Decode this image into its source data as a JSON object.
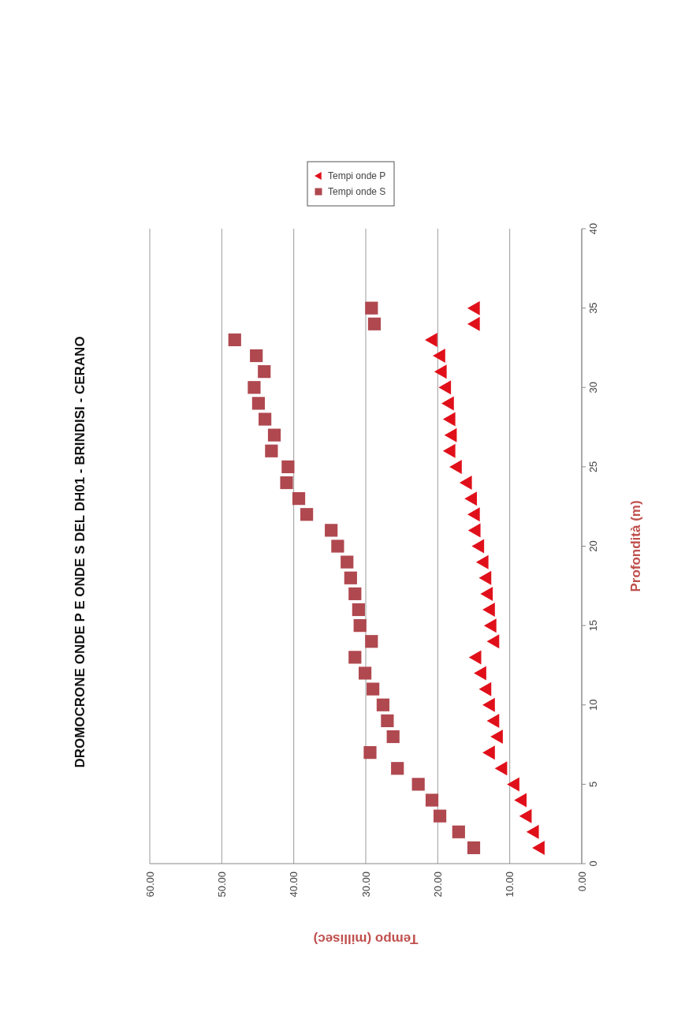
{
  "chart_data": {
    "type": "scatter",
    "title": "DROMOCRONE ONDE P E ONDE S DEL DH01 - BRINDISI - CERANO",
    "xlabel": "Tempo (millisec)",
    "ylabel": "Profondità (m)",
    "series": [
      {
        "name": "Tempi onde P",
        "color": "#e0101a",
        "marker": "triangle",
        "x": [
          5.9,
          6.7,
          7.7,
          8.4,
          9.4,
          11.1,
          12.8,
          11.7,
          12.2,
          12.8,
          13.3,
          14.0,
          14.7,
          12.2,
          12.6,
          12.8,
          13.1,
          13.3,
          13.7,
          14.3,
          14.8,
          14.9,
          15.3,
          16.0,
          17.4,
          18.3,
          18.1,
          18.3,
          18.5,
          18.9,
          19.5,
          19.7,
          20.8,
          14.9,
          14.9
        ],
        "values": [
          1,
          2,
          3,
          4,
          5,
          6,
          7,
          8,
          9,
          10,
          11,
          12,
          13,
          14,
          15,
          16,
          17,
          18,
          19,
          20,
          21,
          22,
          23,
          24,
          25,
          26,
          27,
          28,
          29,
          30,
          31,
          32,
          33,
          34,
          35
        ]
      },
      {
        "name": "Tempi onde S",
        "color": "#b0484f",
        "marker": "square",
        "x": [
          15.0,
          17.1,
          19.7,
          20.8,
          22.7,
          25.6,
          29.4,
          26.2,
          27.0,
          27.6,
          29.0,
          30.1,
          31.5,
          29.2,
          30.8,
          31.0,
          31.5,
          32.1,
          32.6,
          33.9,
          34.8,
          38.2,
          39.3,
          41.0,
          40.8,
          43.1,
          42.7,
          44.0,
          44.9,
          45.5,
          44.1,
          45.2,
          48.2,
          28.8,
          29.2
        ],
        "values": [
          1,
          2,
          3,
          4,
          5,
          6,
          7,
          8,
          9,
          10,
          11,
          12,
          13,
          14,
          15,
          16,
          17,
          18,
          19,
          20,
          21,
          22,
          23,
          24,
          25,
          26,
          27,
          28,
          29,
          30,
          31,
          32,
          33,
          34,
          35
        ]
      }
    ],
    "xlim": [
      60,
      0
    ],
    "xticks": [
      {
        "value": 60,
        "label": "60.00"
      },
      {
        "value": 50,
        "label": "50.00"
      },
      {
        "value": 40,
        "label": "40.00"
      },
      {
        "value": 30,
        "label": "30.00"
      },
      {
        "value": 20,
        "label": "20.00"
      },
      {
        "value": 10,
        "label": "10.00"
      },
      {
        "value": 0,
        "label": "0.00"
      }
    ],
    "ylim": [
      0,
      40
    ],
    "yticks": [
      0,
      5,
      10,
      15,
      20,
      25,
      30,
      35,
      40
    ],
    "grid": "x",
    "legend": "top"
  }
}
